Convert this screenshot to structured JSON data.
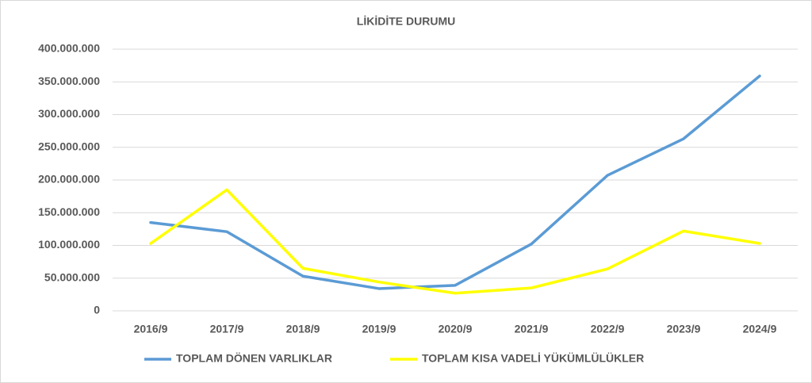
{
  "chart_data": {
    "type": "line",
    "title": "LİKİDİTE DURUMU",
    "categories": [
      "2016/9",
      "2017/9",
      "2018/9",
      "2019/9",
      "2020/9",
      "2021/9",
      "2022/9",
      "2023/9",
      "2024/9"
    ],
    "series": [
      {
        "name": "TOPLAM DÖNEN VARLIKLAR",
        "color": "#5b9bd5",
        "values": [
          135000000,
          121000000,
          53000000,
          34000000,
          39000000,
          102000000,
          207000000,
          263000000,
          359000000
        ]
      },
      {
        "name": "TOPLAM KISA VADELİ YÜKÜMLÜLÜKLER",
        "color": "#ffff00",
        "values": [
          103000000,
          185000000,
          65000000,
          44000000,
          27000000,
          35000000,
          64000000,
          122000000,
          103000000
        ]
      }
    ],
    "ylim": [
      0,
      400000000
    ],
    "yticks": [
      0,
      {
        "value": 50000000,
        "label": "50.000.000"
      },
      {
        "value": 100000000,
        "label": "100.000.000"
      },
      {
        "value": 150000000,
        "label": "150.000.000"
      },
      {
        "value": 200000000,
        "label": "200.000.000"
      },
      {
        "value": 250000000,
        "label": "250.000.000"
      },
      {
        "value": 300000000,
        "label": "300.000.000"
      },
      {
        "value": 350000000,
        "label": "350.000.000"
      },
      {
        "value": 400000000,
        "label": "400.000.000"
      }
    ],
    "grid": true,
    "legend": "bottom"
  }
}
